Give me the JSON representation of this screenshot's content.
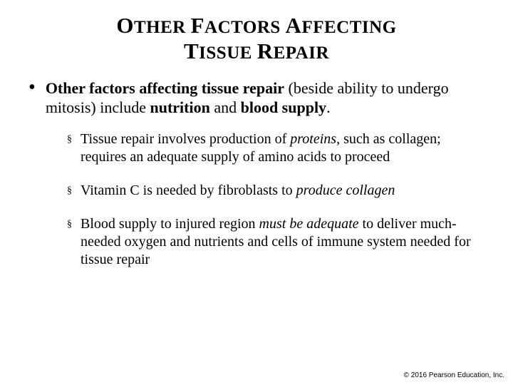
{
  "title_line1_parts": [
    {
      "t": "O",
      "big": true
    },
    {
      "t": "THER ",
      "big": false
    },
    {
      "t": "F",
      "big": true
    },
    {
      "t": "ACTORS ",
      "big": false
    },
    {
      "t": "A",
      "big": true
    },
    {
      "t": "FFECTING",
      "big": false
    }
  ],
  "title_line2_parts": [
    {
      "t": "T",
      "big": true
    },
    {
      "t": "ISSUE ",
      "big": false
    },
    {
      "t": "R",
      "big": true
    },
    {
      "t": "EPAIR",
      "big": false
    }
  ],
  "main": {
    "segments": [
      {
        "t": "Other factors affecting tissue repair",
        "b": true,
        "i": false
      },
      {
        "t": " (beside ability to undergo mitosis) include ",
        "b": false,
        "i": false
      },
      {
        "t": "nutrition",
        "b": true,
        "i": false
      },
      {
        "t": " and ",
        "b": false,
        "i": false
      },
      {
        "t": "blood supply",
        "b": true,
        "i": false
      },
      {
        "t": ".",
        "b": false,
        "i": false
      }
    ]
  },
  "subs": [
    {
      "segments": [
        {
          "t": "Tissue repair involves production of ",
          "b": false,
          "i": false
        },
        {
          "t": "proteins",
          "b": false,
          "i": true
        },
        {
          "t": ", such as collagen; requires an adequate supply of amino acids to proceed",
          "b": false,
          "i": false
        }
      ]
    },
    {
      "segments": [
        {
          "t": "Vitamin C is needed by fibroblasts to ",
          "b": false,
          "i": false
        },
        {
          "t": "produce collagen",
          "b": false,
          "i": true
        }
      ]
    },
    {
      "segments": [
        {
          "t": "Blood supply to injured region ",
          "b": false,
          "i": false
        },
        {
          "t": "must be adequate",
          "b": false,
          "i": true
        },
        {
          "t": " to deliver much-needed oxygen and nutrients and cells of immune system needed for tissue repair",
          "b": false,
          "i": false
        }
      ]
    }
  ],
  "copyright": "© 2016 Pearson Education, Inc.",
  "style": {
    "title_fontsize_big": 31,
    "title_fontsize_small": 25,
    "main_fontsize": 22,
    "sub_fontsize": 20,
    "copyright_fontsize": 10,
    "text_color": "#000000",
    "background_color": "#ffffff",
    "bullet_dot": "•",
    "bullet_square": "§"
  }
}
